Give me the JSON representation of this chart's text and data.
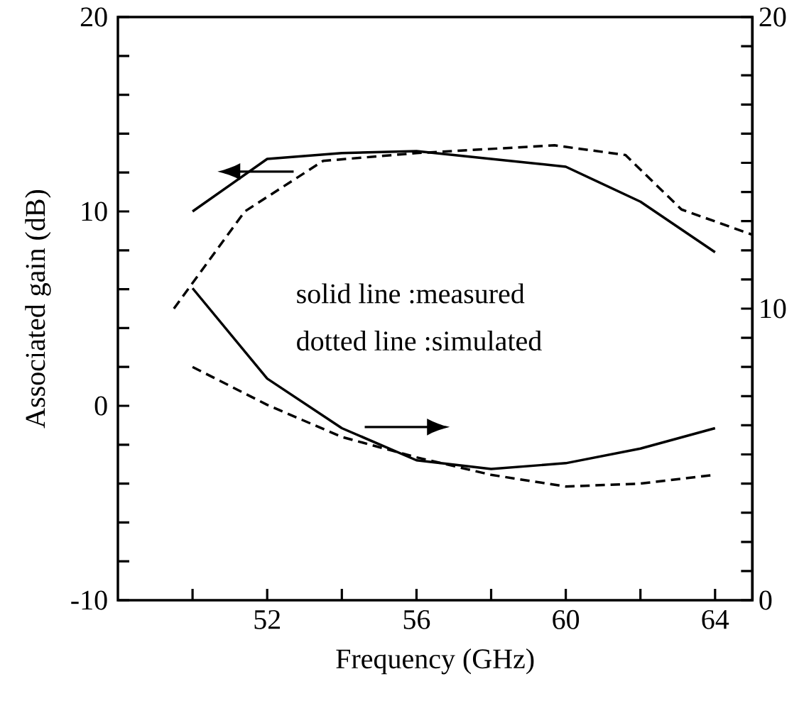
{
  "chart_data": {
    "type": "line",
    "xlabel": "Frequency (GHz)",
    "ylabel": "Associated gain (dB)",
    "xlim": [
      48,
      65
    ],
    "xticks": [
      {
        "value": 50,
        "label": null
      },
      52,
      {
        "value": 54,
        "label": null
      },
      56,
      {
        "value": 58,
        "label": null
      },
      60,
      {
        "value": 62,
        "label": null
      },
      64
    ],
    "ylim": [
      -10,
      20
    ],
    "yticks": [
      -10,
      {
        "value": -8,
        "label": null
      },
      {
        "value": -6,
        "label": null
      },
      {
        "value": -4,
        "label": null
      },
      {
        "value": -2,
        "label": null
      },
      0,
      {
        "value": 2,
        "label": null
      },
      {
        "value": 4,
        "label": null
      },
      {
        "value": 6,
        "label": null
      },
      {
        "value": 8,
        "label": null
      },
      10,
      {
        "value": 12,
        "label": null
      },
      {
        "value": 14,
        "label": null
      },
      {
        "value": 16,
        "label": null
      },
      {
        "value": 18,
        "label": null
      },
      20
    ],
    "y2lim": [
      0,
      20
    ],
    "y2ticks": [
      0,
      {
        "value": 1,
        "label": null
      },
      {
        "value": 2,
        "label": null
      },
      {
        "value": 3,
        "label": null
      },
      {
        "value": 4,
        "label": null
      },
      {
        "value": 5,
        "label": null
      },
      {
        "value": 6,
        "label": null
      },
      {
        "value": 7,
        "label": null
      },
      {
        "value": 8,
        "label": null
      },
      {
        "value": 9,
        "label": null
      },
      10,
      {
        "value": 11,
        "label": null
      },
      {
        "value": 12,
        "label": null
      },
      {
        "value": 13,
        "label": null
      },
      {
        "value": 14,
        "label": null
      },
      {
        "value": 15,
        "label": null
      },
      {
        "value": 16,
        "label": null
      },
      {
        "value": 17,
        "label": null
      },
      {
        "value": 18,
        "label": null
      },
      {
        "value": 19,
        "label": null
      },
      20
    ],
    "series": [
      {
        "color": "#000000",
        "line_style": "solid",
        "x": [
          50,
          52,
          54,
          56,
          58,
          60,
          62,
          64
        ],
        "values": [
          10.0,
          12.7,
          13.0,
          13.1,
          12.7,
          12.3,
          10.5,
          7.9
        ]
      },
      {
        "color": "#000000",
        "line_style": "dashed",
        "x": [
          49.5,
          51.4,
          53.5,
          56,
          59.7,
          61.6,
          63.1,
          65
        ],
        "values": [
          5.0,
          10.0,
          12.6,
          13.0,
          13.4,
          12.9,
          10.1,
          8.8
        ]
      },
      {
        "color": "#000000",
        "line_style": "solid",
        "axis": "y2",
        "x": [
          50,
          52,
          54,
          56,
          58,
          60,
          62,
          64
        ],
        "values": [
          10.7,
          7.6,
          5.9,
          4.8,
          4.5,
          4.7,
          5.2,
          5.9
        ]
      },
      {
        "color": "#000000",
        "line_style": "dashed",
        "axis": "y2",
        "x": [
          50,
          52,
          54,
          56,
          58,
          60,
          62,
          64
        ],
        "values": [
          8.0,
          6.7,
          5.6,
          4.9,
          4.3,
          3.9,
          4.0,
          4.3
        ]
      }
    ],
    "annotations": [
      "solid line :measured",
      "dotted line :simulated"
    ]
  }
}
